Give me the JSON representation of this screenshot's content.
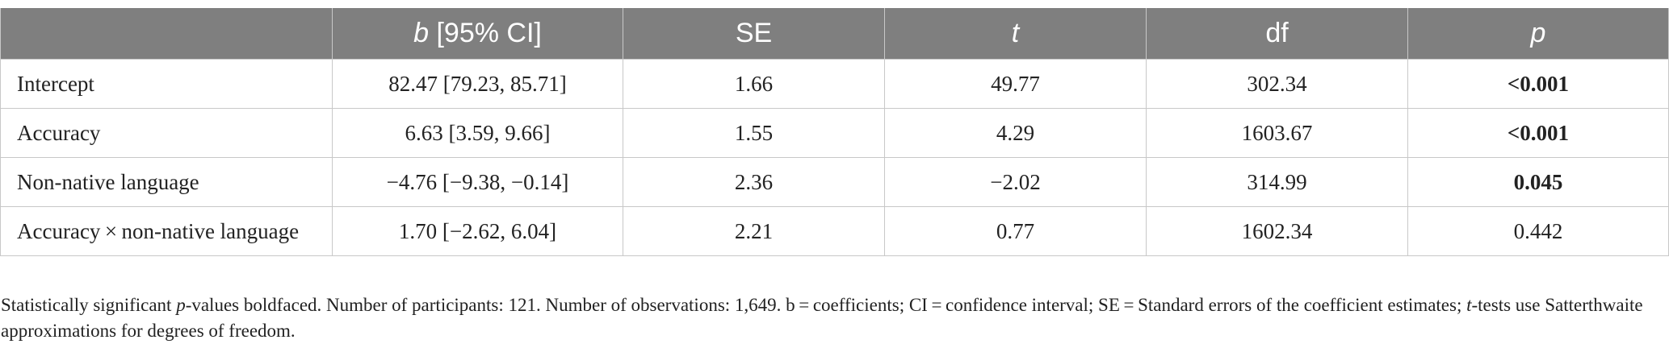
{
  "table": {
    "headers": [
      {
        "italic": "",
        "text": ""
      },
      {
        "italic": "b",
        "text": " [95% CI]"
      },
      {
        "italic": "",
        "text": "SE"
      },
      {
        "italic": "t",
        "text": ""
      },
      {
        "italic": "",
        "text": "df"
      },
      {
        "italic": "p",
        "text": ""
      }
    ],
    "rows": [
      {
        "label": "Intercept",
        "b_ci": "82.47 [79.23, 85.71]",
        "se": "1.66",
        "t": "49.77",
        "df": "302.34",
        "p": "<0.001",
        "p_bold": true
      },
      {
        "label": "Accuracy",
        "b_ci": "6.63 [3.59, 9.66]",
        "se": "1.55",
        "t": "4.29",
        "df": "1603.67",
        "p": "<0.001",
        "p_bold": true
      },
      {
        "label": "Non-native language",
        "b_ci": "−4.76 [−9.38, −0.14]",
        "se": "2.36",
        "t": "−2.02",
        "df": "314.99",
        "p": "0.045",
        "p_bold": true
      },
      {
        "label": "Accuracy × non-native language",
        "b_ci": "1.70 [−2.62, 6.04]",
        "se": "2.21",
        "t": "0.77",
        "df": "1602.34",
        "p": "0.442",
        "p_bold": false
      }
    ]
  },
  "note": {
    "part1": "Statistically significant ",
    "p_italic": "p",
    "part2": "-values boldfaced. Number of participants: 121. Number of observations: 1,649. b = coefficients; CI = confidence interval; SE = Standard errors of the coefficient estimates; ",
    "t_italic": "t",
    "part3": "-tests use Satterthwaite approximations for degrees of freedom."
  }
}
